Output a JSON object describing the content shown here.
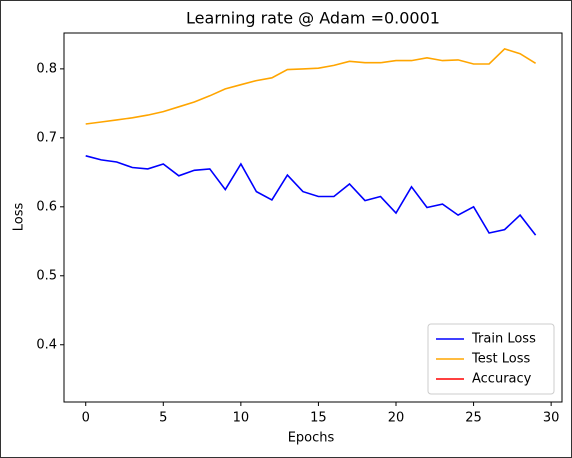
{
  "chart_data": {
    "type": "line",
    "title": "Learning rate @ Adam  =0.0001",
    "x_label": "Epochs",
    "y_label": "Loss",
    "x": [
      0,
      1,
      2,
      3,
      4,
      5,
      6,
      7,
      8,
      9,
      10,
      11,
      12,
      13,
      14,
      15,
      16,
      17,
      18,
      19,
      20,
      21,
      22,
      23,
      24,
      25,
      26,
      27,
      28,
      29
    ],
    "series": [
      {
        "name": "Train Loss",
        "color": "#0000ff",
        "values": [
          0.674,
          0.668,
          0.665,
          0.657,
          0.655,
          0.662,
          0.645,
          0.653,
          0.655,
          0.625,
          0.662,
          0.622,
          0.61,
          0.646,
          0.622,
          0.615,
          0.615,
          0.633,
          0.609,
          0.615,
          0.591,
          0.629,
          0.599,
          0.604,
          0.588,
          0.6,
          0.562,
          0.567,
          0.588,
          0.559
        ]
      },
      {
        "name": "Test Loss",
        "color": "#ffa500",
        "values": [
          0.72,
          0.723,
          0.726,
          0.729,
          0.733,
          0.738,
          0.745,
          0.752,
          0.761,
          0.771,
          0.777,
          0.783,
          0.787,
          0.799,
          0.8,
          0.801,
          0.805,
          0.811,
          0.809,
          0.809,
          0.812,
          0.812,
          0.816,
          0.812,
          0.813,
          0.807,
          0.807,
          0.829,
          0.822,
          0.808
        ]
      },
      {
        "name": "Accuracy",
        "color": "#ff0000",
        "values": [
          null,
          null,
          null,
          null,
          null,
          null,
          null,
          null,
          null,
          null,
          null,
          null,
          null,
          null,
          null,
          null,
          null,
          null,
          null,
          null,
          null,
          null,
          null,
          null,
          null,
          null,
          null,
          null,
          null,
          null
        ]
      }
    ],
    "xlim": [
      -1.4,
      30.7
    ],
    "xticks": [
      0,
      5,
      10,
      15,
      20,
      25,
      30
    ],
    "ylim": [
      0.317,
      0.852
    ],
    "yticks": [
      0.4,
      0.5,
      0.6,
      0.7,
      0.8
    ],
    "legend": "lower right",
    "grid": false
  }
}
